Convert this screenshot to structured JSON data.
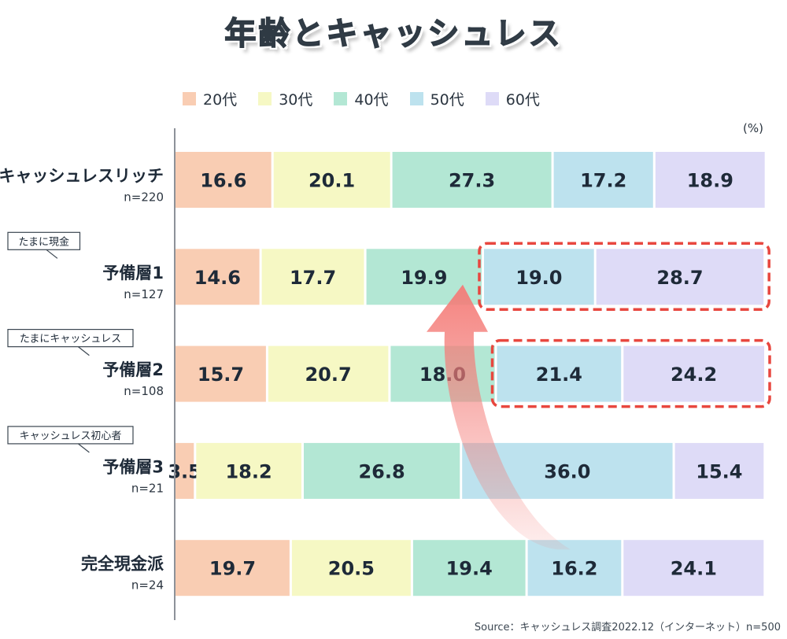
{
  "title": "年齢とキャッシュレス",
  "unit_label": "(%)",
  "source": "Source：キャッシュレス調査2022.12（インターネット）n=500",
  "chart_data": {
    "type": "bar",
    "orientation": "horizontal",
    "stacked": true,
    "xlim": [
      0,
      100
    ],
    "categories": [
      {
        "name": "キャッシュレスリッチ",
        "n": "n=220",
        "tag": ""
      },
      {
        "name": "予備層1",
        "n": "n=127",
        "tag": "たまに現金"
      },
      {
        "name": "予備層2",
        "n": "n=108",
        "tag": "たまにキャッシュレス"
      },
      {
        "name": "予備層3",
        "n": "n=21",
        "tag": "キャッシュレス初心者"
      },
      {
        "name": "完全現金派",
        "n": "n=24",
        "tag": ""
      }
    ],
    "series": [
      {
        "name": "20代",
        "color": "#f9cdb3",
        "values": [
          16.6,
          14.6,
          15.7,
          3.5,
          19.7
        ]
      },
      {
        "name": "30代",
        "color": "#f6f8c4",
        "values": [
          20.1,
          17.7,
          20.7,
          18.2,
          20.5
        ]
      },
      {
        "name": "40代",
        "color": "#b3e7d4",
        "values": [
          27.3,
          19.9,
          18.0,
          26.8,
          19.4
        ]
      },
      {
        "name": "50代",
        "color": "#bde2ee",
        "values": [
          17.2,
          19.0,
          21.4,
          36.0,
          16.2
        ]
      },
      {
        "name": "60代",
        "color": "#dedbf7",
        "values": [
          18.9,
          28.7,
          24.2,
          15.4,
          24.1
        ]
      }
    ],
    "highlights": [
      {
        "row": 1,
        "from_series": 3,
        "to_series": 4,
        "color": "#e8473f"
      },
      {
        "row": 2,
        "from_series": 3,
        "to_series": 4,
        "color": "#e8473f"
      }
    ],
    "arrow": {
      "from_row": 4,
      "to_row": 1,
      "color": "#f47c78"
    },
    "legend_position": "top",
    "grid": false
  }
}
